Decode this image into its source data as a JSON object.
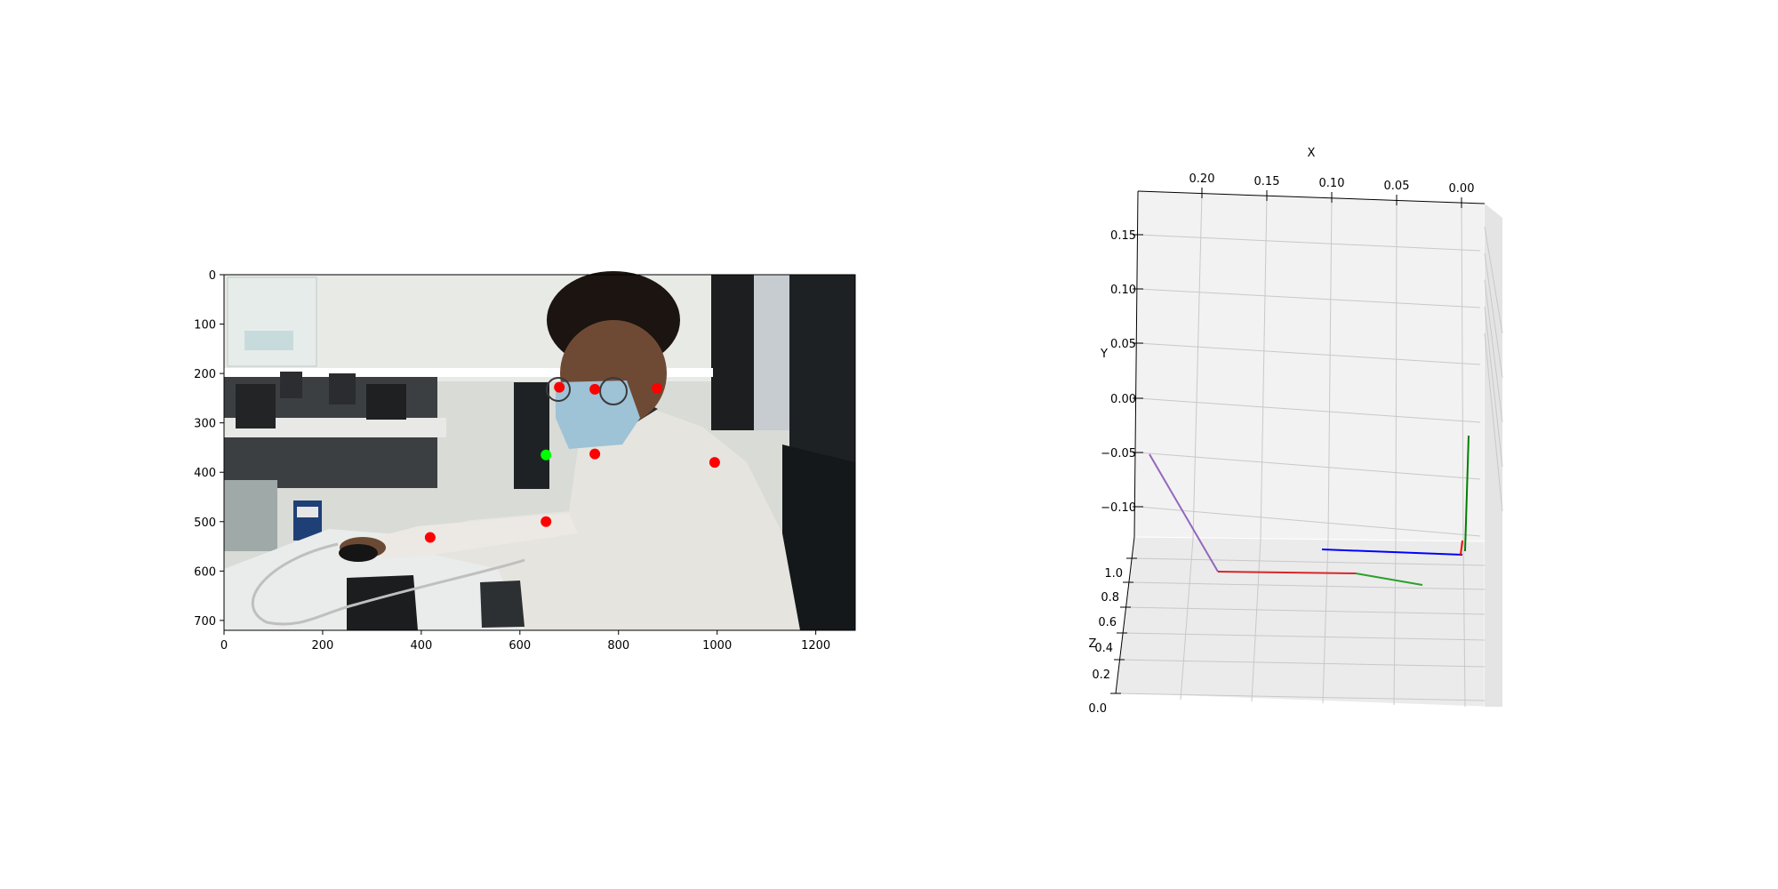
{
  "chart_data": [
    {
      "type": "scatter",
      "description_of_background": "webcam frame of a person at an office desk",
      "x_ticks": [
        0,
        200,
        400,
        600,
        800,
        1000,
        1200
      ],
      "y_ticks": [
        0,
        100,
        200,
        300,
        400,
        500,
        600,
        700
      ],
      "xlim": [
        0,
        1280
      ],
      "ylim": [
        720,
        0
      ],
      "series": [
        {
          "color": "#ff0000",
          "points": [
            {
              "x": 680,
              "y": 228
            },
            {
              "x": 752,
              "y": 232
            },
            {
              "x": 878,
              "y": 230
            },
            {
              "x": 752,
              "y": 363
            },
            {
              "x": 995,
              "y": 380
            },
            {
              "x": 653,
              "y": 500
            },
            {
              "x": 418,
              "y": 532
            }
          ]
        },
        {
          "color": "#00ff00",
          "points": [
            {
              "x": 653,
              "y": 365
            }
          ]
        }
      ]
    },
    {
      "type": "line3d",
      "xlabel": "X",
      "ylabel": "Y",
      "zlabel": "Z",
      "x_ticks": [
        "0.20",
        "0.15",
        "0.10",
        "0.05",
        "0.00"
      ],
      "y_ticks": [
        "0.15",
        "0.10",
        "0.05",
        "0.00",
        "−0.05",
        "−0.10"
      ],
      "z_ticks": [
        "1.0",
        "0.8",
        "0.6",
        "0.4",
        "0.2",
        "0.0"
      ],
      "segments": [
        {
          "color": "#9467bd"
        },
        {
          "color": "#d62728"
        },
        {
          "color": "#2ca02c"
        },
        {
          "color": "#0000ff"
        },
        {
          "color": "#008000"
        },
        {
          "color": "#ff0000"
        }
      ]
    }
  ]
}
